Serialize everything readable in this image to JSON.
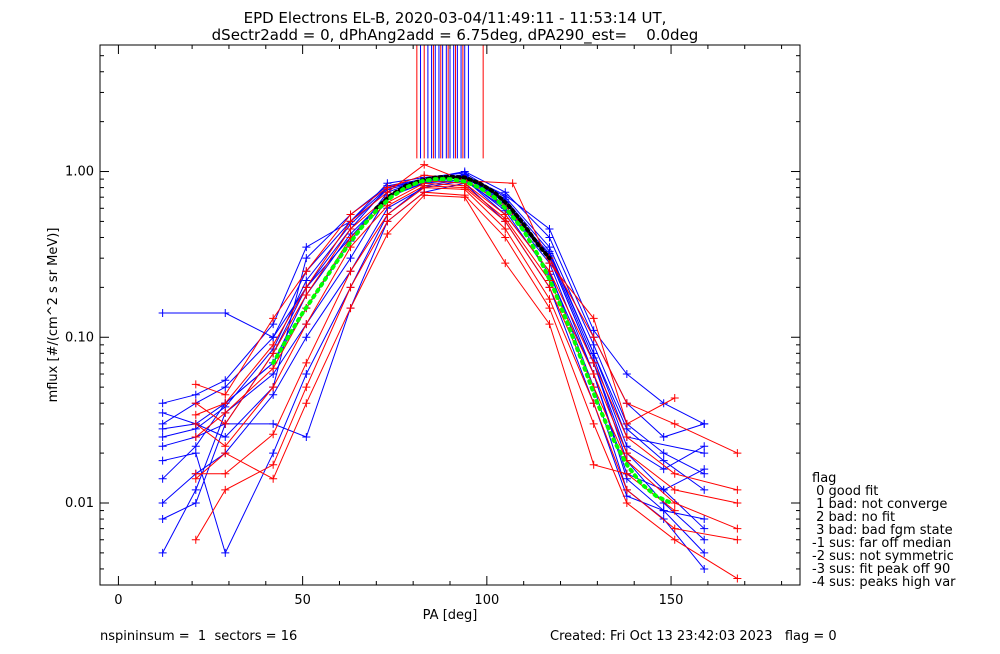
{
  "chart_data": {
    "type": "line",
    "title_lines": [
      "EPD Electrons EL-B, 2020-03-04/11:49:11 - 11:53:14 UT,",
      "dSectr2add = 0, dPhAng2add = 6.75deg, dPA290_est=    0.0deg"
    ],
    "xlabel": "PA [deg]",
    "ylabel": "mflux [#/(cm^2 s sr MeV)]",
    "xlim": [
      -5,
      185
    ],
    "ylim": [
      0.0032,
      5.8
    ],
    "yscale": "log",
    "x_ticks": [
      0,
      50,
      100,
      150
    ],
    "x_tick_labels": [
      "0",
      "50",
      "100",
      "150"
    ],
    "y_ticks": [
      1.0,
      0.1,
      0.01
    ],
    "y_tick_labels": [
      "1.00",
      "0.10",
      "0.01"
    ],
    "colors": {
      "blue": "#0000ff",
      "red": "#ff0000",
      "green": "#00ff00",
      "black": "#000000"
    },
    "spin_marker_lines": {
      "blue_x": [
        82,
        84,
        85,
        86,
        87,
        88,
        89,
        90,
        91,
        92,
        93,
        94,
        95
      ],
      "red_x": [
        81,
        83,
        85.5,
        87.5,
        89.5,
        91.5,
        93.5,
        99
      ],
      "y_range": [
        1.2,
        5.8
      ]
    },
    "series": [
      {
        "color": "blue",
        "x": [
          12,
          21,
          29,
          42,
          51,
          63,
          73,
          83,
          94,
          105,
          117,
          129,
          138,
          148,
          159
        ],
        "y": [
          0.014,
          0.022,
          0.04,
          0.07,
          0.15,
          0.38,
          0.75,
          0.9,
          0.95,
          0.6,
          0.28,
          0.06,
          0.014,
          0.009,
          0.005
        ]
      },
      {
        "color": "blue",
        "x": [
          12,
          21,
          29,
          42,
          51,
          63,
          73,
          83,
          94,
          105,
          117,
          129,
          138,
          148,
          159
        ],
        "y": [
          0.022,
          0.025,
          0.03,
          0.08,
          0.2,
          0.45,
          0.8,
          0.88,
          0.92,
          0.65,
          0.3,
          0.07,
          0.02,
          0.012,
          0.007
        ]
      },
      {
        "color": "blue",
        "x": [
          12,
          21,
          29,
          42,
          51,
          63,
          73,
          83,
          94,
          105,
          117,
          129,
          138,
          148,
          159
        ],
        "y": [
          0.03,
          0.04,
          0.05,
          0.1,
          0.25,
          0.5,
          0.85,
          0.92,
          0.98,
          0.7,
          0.35,
          0.09,
          0.03,
          0.02,
          0.015
        ]
      },
      {
        "color": "blue",
        "x": [
          12,
          21,
          29,
          42,
          51,
          63,
          73,
          83,
          94,
          105,
          117,
          129,
          138,
          148,
          159
        ],
        "y": [
          0.005,
          0.012,
          0.035,
          0.06,
          0.12,
          0.3,
          0.7,
          0.85,
          0.9,
          0.55,
          0.25,
          0.05,
          0.012,
          0.008,
          0.004
        ]
      },
      {
        "color": "blue",
        "x": [
          12,
          29,
          42,
          51,
          63,
          73,
          83,
          94,
          105,
          117,
          129,
          138,
          159
        ],
        "y": [
          0.14,
          0.14,
          0.1,
          0.2,
          0.4,
          0.72,
          0.88,
          0.96,
          0.62,
          0.32,
          0.08,
          0.025,
          0.02
        ]
      },
      {
        "color": "blue",
        "x": [
          12,
          21,
          29,
          42,
          51,
          63,
          73,
          83,
          94,
          105,
          117,
          129,
          138,
          148,
          159
        ],
        "y": [
          0.035,
          0.03,
          0.025,
          0.05,
          0.3,
          0.55,
          0.82,
          0.9,
          1.0,
          0.75,
          0.4,
          0.1,
          0.04,
          0.025,
          0.03
        ]
      },
      {
        "color": "blue",
        "x": [
          12,
          21,
          29,
          42,
          51,
          63,
          73,
          83,
          94,
          105,
          117,
          129,
          138,
          148,
          159
        ],
        "y": [
          0.01,
          0.015,
          0.02,
          0.045,
          0.1,
          0.25,
          0.6,
          0.8,
          0.88,
          0.6,
          0.3,
          0.07,
          0.018,
          0.01,
          0.006
        ]
      },
      {
        "color": "blue",
        "x": [
          12,
          21,
          29,
          42,
          51,
          63,
          73,
          83,
          94,
          105,
          117,
          129,
          138,
          148,
          159
        ],
        "y": [
          0.028,
          0.03,
          0.04,
          0.07,
          0.18,
          0.42,
          0.7,
          0.86,
          0.93,
          0.68,
          0.33,
          0.08,
          0.028,
          0.018,
          0.012
        ]
      },
      {
        "color": "blue",
        "x": [
          12,
          21,
          29,
          42,
          51,
          63,
          73,
          83,
          94,
          105,
          117,
          129,
          138,
          148,
          159
        ],
        "y": [
          0.018,
          0.02,
          0.005,
          0.02,
          0.06,
          0.2,
          0.55,
          0.82,
          0.9,
          0.58,
          0.24,
          0.06,
          0.015,
          0.012,
          0.016
        ]
      },
      {
        "color": "blue",
        "x": [
          12,
          21,
          29,
          42,
          51,
          63,
          73,
          83,
          94,
          105,
          117,
          129,
          138,
          148,
          159
        ],
        "y": [
          0.04,
          0.045,
          0.055,
          0.12,
          0.35,
          0.5,
          0.8,
          0.9,
          0.95,
          0.72,
          0.45,
          0.11,
          0.06,
          0.04,
          0.03
        ]
      },
      {
        "color": "blue",
        "x": [
          12,
          21,
          29,
          42,
          51,
          63,
          73,
          83,
          94,
          105,
          117,
          129,
          138,
          148,
          159
        ],
        "y": [
          0.008,
          0.01,
          0.03,
          0.03,
          0.025,
          0.15,
          0.5,
          0.75,
          0.85,
          0.5,
          0.2,
          0.04,
          0.011,
          0.009,
          0.008
        ]
      },
      {
        "color": "blue",
        "x": [
          12,
          21,
          29,
          42,
          51,
          63,
          73,
          83,
          94,
          105,
          117,
          129,
          138,
          148,
          159
        ],
        "y": [
          0.025,
          0.028,
          0.038,
          0.085,
          0.22,
          0.48,
          0.78,
          0.88,
          0.94,
          0.66,
          0.31,
          0.075,
          0.022,
          0.016,
          0.022
        ]
      },
      {
        "color": "red",
        "x": [
          21,
          29,
          42,
          51,
          63,
          73,
          83,
          94,
          105,
          117,
          129,
          138,
          151,
          168
        ],
        "y": [
          0.052,
          0.045,
          0.13,
          0.25,
          0.55,
          0.8,
          0.95,
          0.9,
          0.62,
          0.3,
          0.1,
          0.04,
          0.03,
          0.02
        ]
      },
      {
        "color": "red",
        "x": [
          21,
          29,
          42,
          51,
          63,
          73,
          83,
          94,
          105,
          117,
          129,
          138,
          151,
          168
        ],
        "y": [
          0.04,
          0.03,
          0.08,
          0.18,
          0.45,
          0.7,
          0.88,
          0.85,
          0.55,
          0.25,
          0.07,
          0.025,
          0.015,
          0.012
        ]
      },
      {
        "color": "red",
        "x": [
          21,
          29,
          42,
          51,
          63,
          73,
          83,
          94,
          105,
          117,
          129,
          138,
          151,
          168
        ],
        "y": [
          0.03,
          0.022,
          0.05,
          0.12,
          0.35,
          0.62,
          0.82,
          0.8,
          0.5,
          0.2,
          0.05,
          0.018,
          0.01,
          0.007
        ]
      },
      {
        "color": "red",
        "x": [
          21,
          29,
          42,
          51,
          63,
          73,
          83,
          94,
          105,
          117,
          129,
          138,
          151,
          168
        ],
        "y": [
          0.015,
          0.015,
          0.026,
          0.07,
          0.25,
          0.55,
          0.8,
          0.78,
          0.45,
          0.17,
          0.04,
          0.012,
          0.007,
          0.006
        ]
      },
      {
        "color": "red",
        "x": [
          21,
          29,
          42,
          51,
          63,
          73,
          83,
          94,
          105,
          117,
          129,
          138,
          151,
          168
        ],
        "y": [
          0.006,
          0.012,
          0.017,
          0.05,
          0.2,
          0.5,
          0.75,
          0.72,
          0.4,
          0.15,
          0.03,
          0.01,
          0.006,
          0.0035
        ]
      },
      {
        "color": "red",
        "x": [
          21,
          29,
          42,
          51,
          63,
          73,
          83,
          94,
          105,
          117,
          129,
          138,
          151,
          168
        ],
        "y": [
          0.025,
          0.035,
          0.065,
          0.15,
          0.4,
          0.65,
          0.85,
          0.82,
          0.52,
          0.22,
          0.06,
          0.02,
          0.012,
          0.01
        ]
      },
      {
        "color": "red",
        "x": [
          21,
          29,
          42,
          51,
          63,
          73,
          83,
          94,
          105,
          117,
          129,
          138,
          151
        ],
        "y": [
          0.014,
          0.02,
          0.014,
          0.04,
          0.15,
          0.42,
          0.72,
          0.7,
          0.28,
          0.12,
          0.017,
          0.015,
          0.009
        ]
      },
      {
        "color": "red",
        "x": [
          21,
          29,
          42,
          51,
          63,
          73,
          83,
          94,
          107,
          117,
          129,
          138,
          151
        ],
        "y": [
          0.034,
          0.04,
          0.09,
          0.2,
          0.5,
          0.75,
          1.1,
          0.88,
          0.85,
          0.28,
          0.13,
          0.03,
          0.043
        ]
      }
    ],
    "fit_green": {
      "x": [
        42,
        46,
        50,
        54,
        58,
        62,
        66,
        70,
        74,
        78,
        82,
        86,
        90,
        94,
        98,
        102,
        106,
        110,
        114,
        118,
        122,
        126,
        130,
        134,
        138,
        142,
        146,
        150
      ],
      "y": [
        0.07,
        0.1,
        0.14,
        0.19,
        0.26,
        0.35,
        0.46,
        0.58,
        0.7,
        0.8,
        0.87,
        0.9,
        0.9,
        0.87,
        0.8,
        0.7,
        0.57,
        0.44,
        0.31,
        0.2,
        0.12,
        0.07,
        0.04,
        0.025,
        0.017,
        0.013,
        0.011,
        0.01
      ]
    },
    "fit_black": {
      "x": [
        70,
        74,
        78,
        82,
        86,
        90,
        94,
        98,
        102,
        106,
        110,
        114,
        117
      ],
      "y": [
        0.6,
        0.72,
        0.82,
        0.88,
        0.92,
        0.93,
        0.92,
        0.85,
        0.75,
        0.62,
        0.48,
        0.36,
        0.3
      ]
    }
  },
  "legend": {
    "title": "flag",
    "items": [
      " 0 good fit",
      " 1 bad: not converge",
      " 2 bad: no fit",
      " 3 bad: bad fgm state",
      "-1 sus: far off median",
      "-2 sus: not symmetric",
      "-3 sus: fit peak off 90",
      "-4 sus: peaks high var"
    ]
  },
  "footer": {
    "left": "nspininsum =  1  sectors = 16",
    "right": "Created: Fri Oct 13 23:42:03 2023   flag = 0"
  }
}
